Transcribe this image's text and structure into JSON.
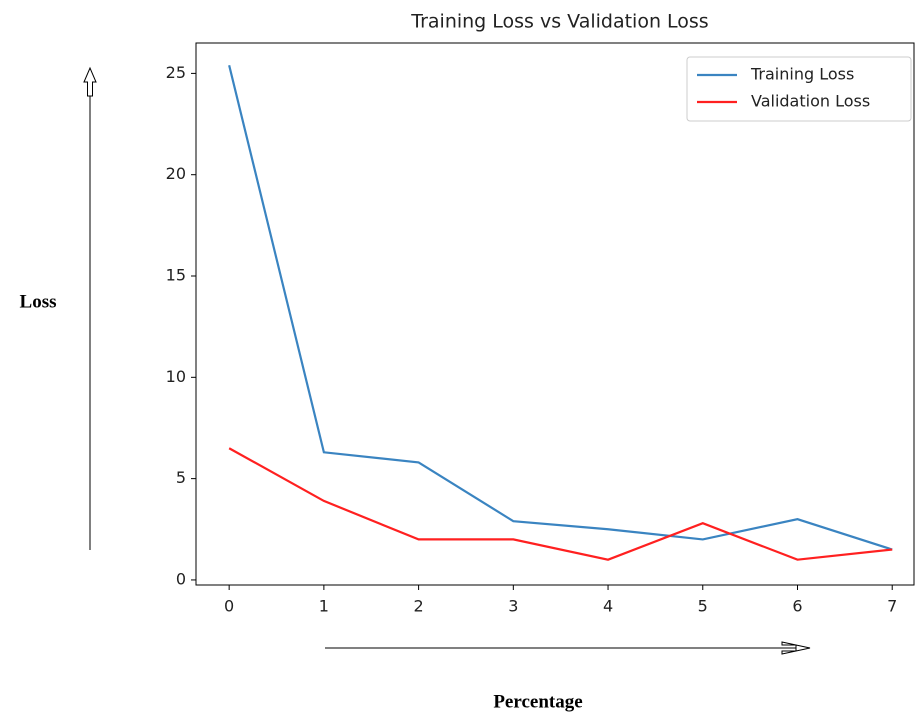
{
  "chart_data": {
    "type": "line",
    "title": "Training Loss vs Validation Loss",
    "xlabel": "Percentage",
    "ylabel": "Loss",
    "x": [
      0,
      1,
      2,
      3,
      4,
      5,
      6,
      7
    ],
    "series": [
      {
        "name": "Training Loss",
        "color": "#3a84c1",
        "values": [
          25.4,
          6.3,
          5.8,
          2.9,
          2.5,
          2.0,
          3.0,
          1.5
        ]
      },
      {
        "name": "Validation Loss",
        "color": "#ff2020",
        "values": [
          6.5,
          3.9,
          2.0,
          2.0,
          1.0,
          2.8,
          1.0,
          1.5
        ]
      }
    ],
    "xlim": [
      -0.35,
      7.23
    ],
    "ylim": [
      -0.25,
      26.5
    ],
    "xticks": [
      0,
      1,
      2,
      3,
      4,
      5,
      6,
      7
    ],
    "yticks": [
      0,
      5,
      10,
      15,
      20,
      25
    ],
    "legend": "upper right"
  }
}
